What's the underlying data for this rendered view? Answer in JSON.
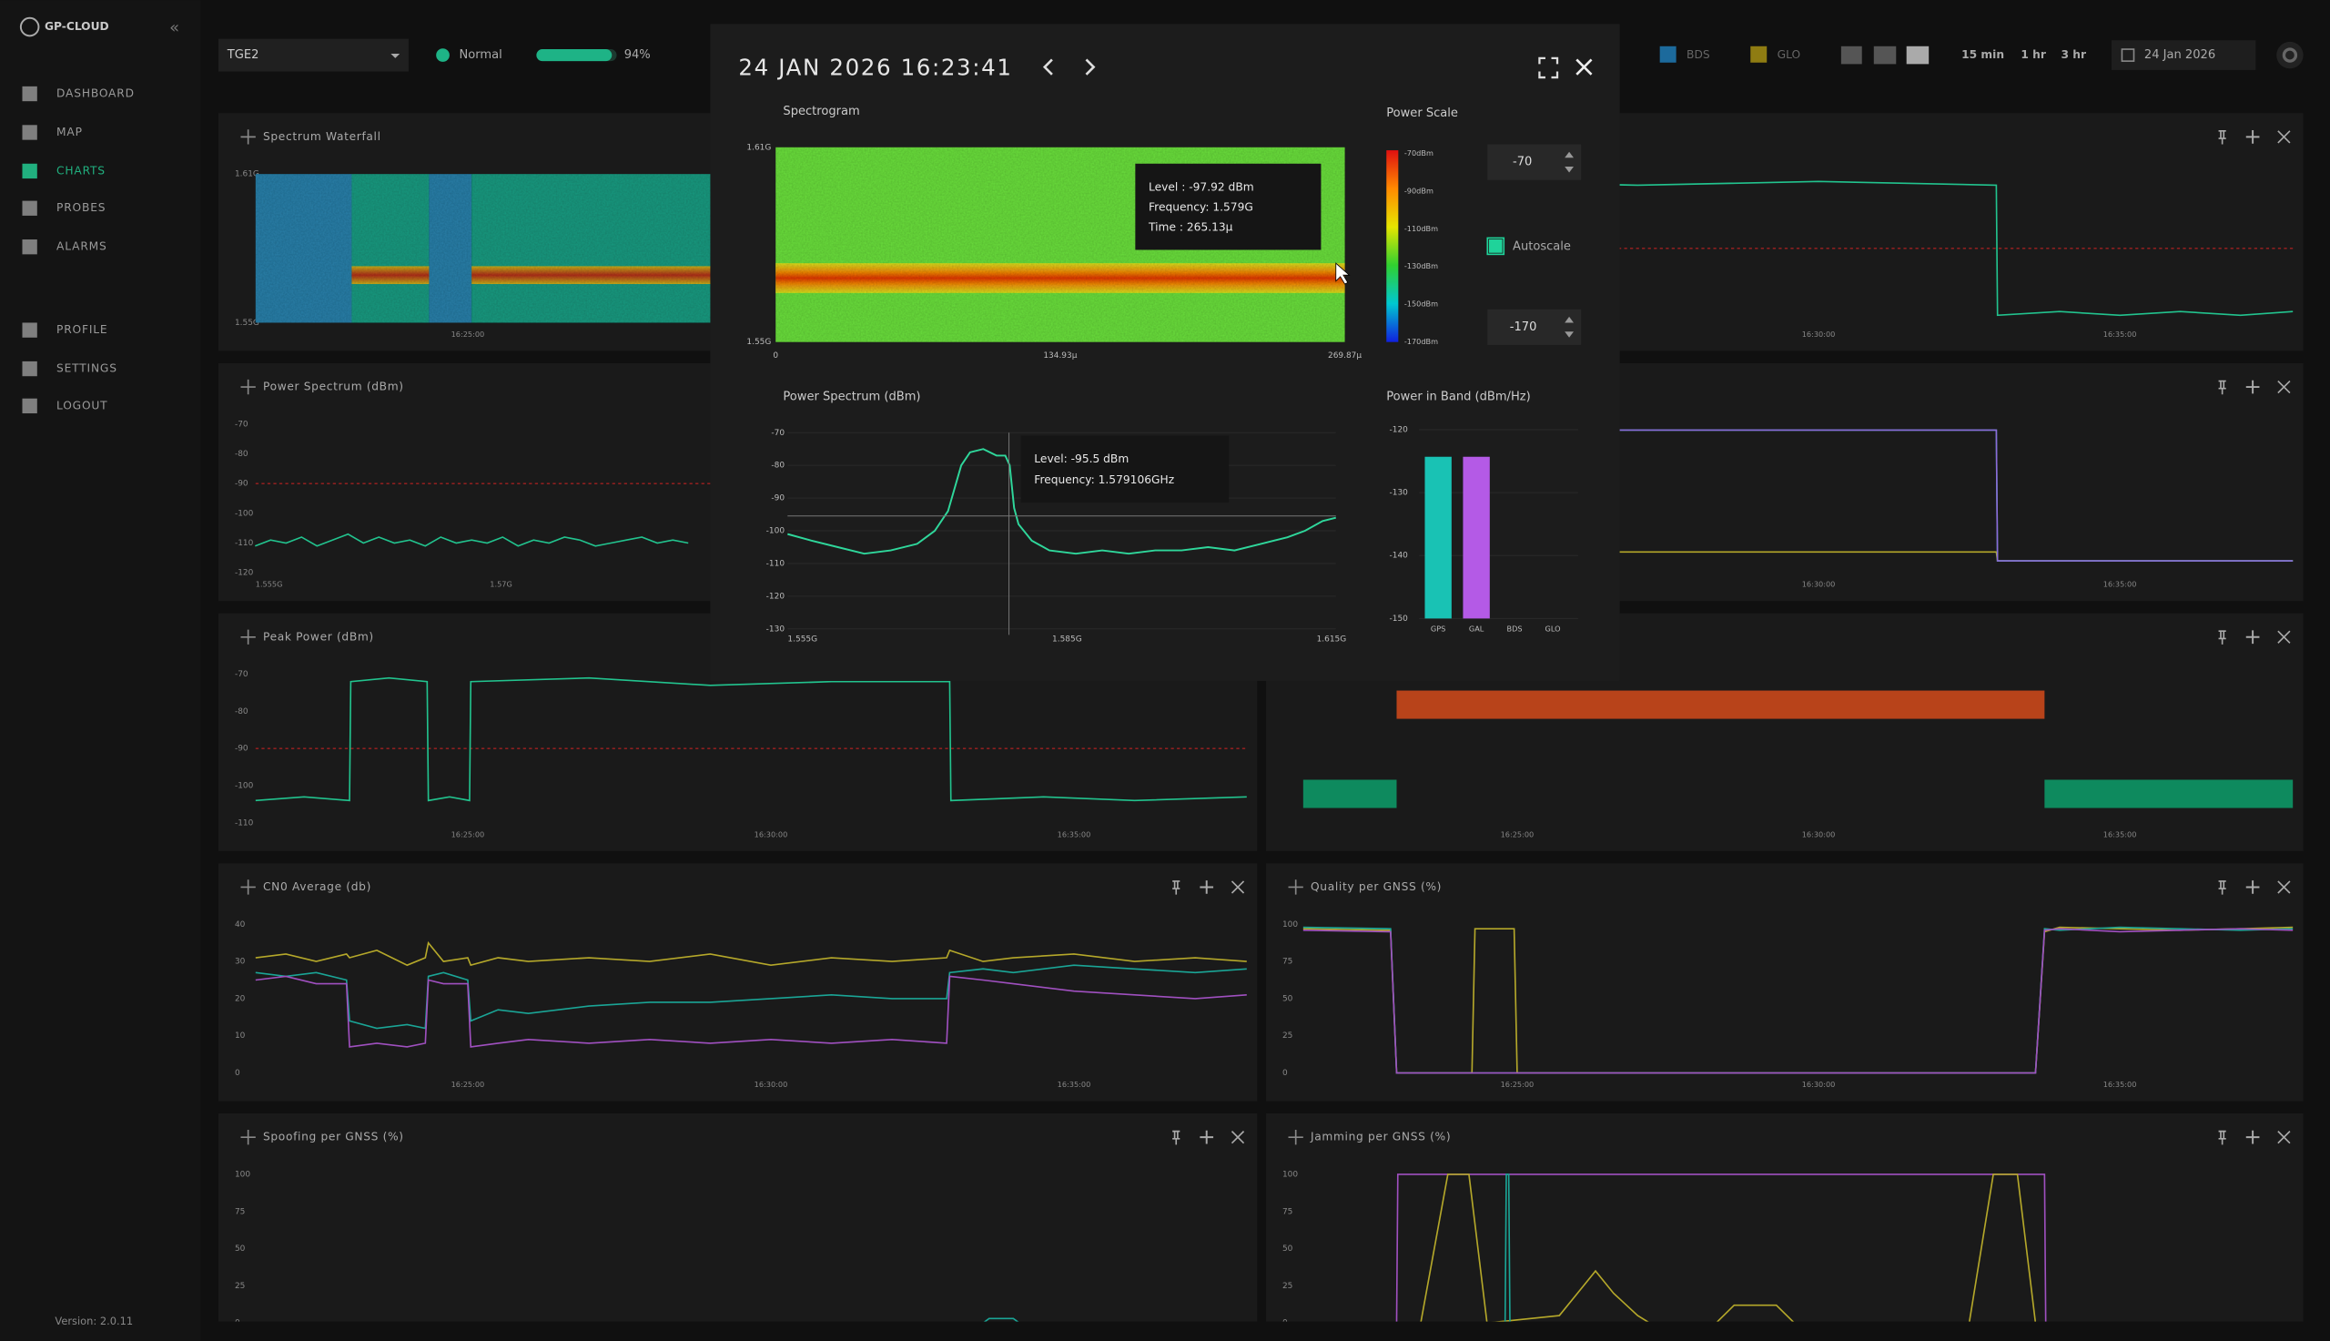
{
  "sidebar": {
    "logo": "GP-CLOUD",
    "nav": [
      "DASHBOARD",
      "MAP",
      "CHARTS",
      "PROBES",
      "ALARMS",
      "PROFILE",
      "SETTINGS",
      "LOGOUT"
    ],
    "version": "Version: 2.0.11"
  },
  "topbar": {
    "probe": "TGE2",
    "status": "Normal",
    "level": 94,
    "level_label": "94%",
    "legend": [
      {
        "name": "BDS",
        "color": "#1c6a9c"
      },
      {
        "name": "GLO",
        "color": "#8f7c12"
      }
    ],
    "ranges": [
      "15 min",
      "1 hr",
      "3 hr"
    ],
    "date": "24 Jan 2026"
  },
  "panels": [
    {
      "type": "waterfall",
      "title": "Spectrum Waterfall",
      "xlim": [
        21.5,
        37.85
      ],
      "xticks": [
        {
          "value": 25,
          "label": "16:25:00"
        }
      ],
      "ylim": [
        1.55,
        1.61
      ],
      "yticks": [
        {
          "value": 1.61,
          "label": "1.61G"
        },
        {
          "value": 1.55,
          "label": "1.55G"
        }
      ]
    },
    {
      "type": "line",
      "title": "Power Spectrum (dBm)",
      "xlim": [
        1.55413,
        1.6182
      ],
      "xticks": [
        {
          "value": 1.555,
          "label": "1.555G"
        },
        {
          "value": 1.57,
          "label": "1.57G"
        }
      ],
      "ylim": [
        -120,
        -70
      ],
      "yticks": [
        -70,
        -80,
        -90,
        -100,
        -110,
        -120
      ],
      "threshold": -90,
      "x": [
        1.5541,
        1.5551,
        1.5561,
        1.5571,
        1.5581,
        1.5591,
        1.5601,
        1.5611,
        1.5621,
        1.5631,
        1.5641,
        1.5651,
        1.5661,
        1.5671,
        1.5681,
        1.5691,
        1.5701,
        1.5711,
        1.5721,
        1.5731,
        1.5741,
        1.5751,
        1.5761,
        1.5771,
        1.5781,
        1.5791,
        1.5801,
        1.5811,
        1.5821
      ],
      "series": [
        {
          "color": "#22c38e",
          "values": [
            -111,
            -109,
            -110,
            -108,
            -111,
            -109,
            -107,
            -110,
            -108,
            -110,
            -109,
            -111,
            -108,
            -110,
            -109,
            -110,
            -108,
            -111,
            -109,
            -110,
            -108,
            -109,
            -111,
            -110,
            -109,
            -108,
            -110,
            -109,
            -110
          ]
        }
      ]
    },
    {
      "type": "line",
      "title": "Peak Power (dBm)",
      "xlim": [
        21.5,
        37.85
      ],
      "xticks": [
        {
          "value": 25,
          "label": "16:25:00"
        },
        {
          "value": 30,
          "label": "16:30:00"
        },
        {
          "value": 35,
          "label": "16:35:00"
        }
      ],
      "ylim": [
        -110,
        -70
      ],
      "yticks": [
        -70,
        -80,
        -90,
        -100,
        -110
      ],
      "threshold": -90,
      "x": [
        21.5,
        22.3,
        23.05,
        23.07,
        23.7,
        24.33,
        24.35,
        24.7,
        25.03,
        25.05,
        27,
        29,
        31,
        32.95,
        32.97,
        34.5,
        36,
        37.85
      ],
      "series": [
        {
          "color": "#22c38e",
          "values": [
            -104,
            -103,
            -104,
            -72,
            -71,
            -72,
            -104,
            -103,
            -104,
            -72,
            -71,
            -73,
            -72,
            -72,
            -104,
            -103,
            -104,
            -103
          ]
        }
      ]
    },
    {
      "type": "line",
      "title": "CN0 Average (db)",
      "xlim": [
        21.5,
        37.85
      ],
      "xticks": [
        {
          "value": 25,
          "label": "16:25:00"
        },
        {
          "value": 30,
          "label": "16:30:00"
        },
        {
          "value": 35,
          "label": "16:35:00"
        }
      ],
      "ylim": [
        0,
        40
      ],
      "yticks": [
        0,
        10,
        20,
        30,
        40
      ],
      "x": [
        21.5,
        22,
        22.5,
        23,
        23.05,
        23.5,
        24,
        24.3,
        24.35,
        24.6,
        25,
        25.05,
        25.5,
        26,
        27,
        28,
        29,
        30,
        31,
        32,
        32.9,
        32.95,
        33.5,
        34,
        35,
        36,
        37,
        37.85
      ],
      "series": [
        {
          "color": "#b5a82a",
          "values": [
            31,
            32,
            30,
            32,
            31,
            33,
            29,
            31,
            35,
            30,
            31,
            29,
            31,
            30,
            31,
            30,
            32,
            29,
            31,
            30,
            31,
            33,
            30,
            31,
            32,
            30,
            31,
            30
          ]
        },
        {
          "color": "#1aa596",
          "values": [
            27,
            26,
            27,
            25,
            14,
            12,
            13,
            12,
            26,
            27,
            25,
            14,
            17,
            16,
            18,
            19,
            19,
            20,
            21,
            20,
            20,
            27,
            28,
            27,
            29,
            28,
            27,
            28
          ]
        },
        {
          "color": "#a050c0",
          "values": [
            25,
            26,
            24,
            24,
            7,
            8,
            7,
            8,
            25,
            24,
            24,
            7,
            8,
            9,
            8,
            9,
            8,
            9,
            8,
            9,
            8,
            26,
            25,
            24,
            22,
            21,
            20,
            21
          ]
        }
      ]
    },
    {
      "type": "line",
      "title": "Spoofing per GNSS (%)",
      "xlim": [
        21.5,
        37.85
      ],
      "xticks": [],
      "ylim": [
        0,
        100
      ],
      "yticks": [
        0,
        25,
        50,
        75,
        100
      ],
      "x": [
        21.5,
        33.5,
        33.6,
        34.0,
        34.1,
        37.85
      ],
      "series": [
        {
          "color": "#1aa596",
          "values": [
            0,
            0,
            3,
            3,
            0,
            0
          ]
        }
      ]
    },
    {
      "type": "line",
      "xlim": [
        21.45,
        37.87
      ],
      "xticks": [
        {
          "value": 25,
          "label": "16:25:00"
        },
        {
          "value": 30,
          "label": "16:30:00"
        },
        {
          "value": 35,
          "label": "16:35:00"
        }
      ],
      "ylim": [
        -110,
        -70
      ],
      "yticks": [],
      "threshold": -90,
      "x": [
        21.45,
        24,
        27,
        30,
        32.95,
        32.97,
        34,
        35,
        36,
        37,
        37.87
      ],
      "series": [
        {
          "color": "#22c38e",
          "values": [
            -73,
            -72,
            -73,
            -72,
            -73,
            -108,
            -107,
            -108,
            -107,
            -108,
            -107
          ]
        }
      ]
    },
    {
      "type": "line",
      "xlim": [
        21.45,
        37.87
      ],
      "xticks": [
        {
          "value": 25,
          "label": "16:25:00"
        },
        {
          "value": 30,
          "label": "16:30:00"
        },
        {
          "value": 35,
          "label": "16:35:00"
        }
      ],
      "ylim": [
        -120,
        -70
      ],
      "yticks": [],
      "x": [
        21.45,
        25,
        30,
        32.95,
        32.97,
        37.87
      ],
      "series": [
        {
          "color": "#b5a82a",
          "values": [
            -113,
            -113,
            -113,
            -113,
            -116,
            -116
          ]
        },
        {
          "color": "#1aa596",
          "values": [
            -72,
            -72,
            -72,
            -72,
            -116,
            -116
          ]
        },
        {
          "color": "#8c6ad8",
          "values": [
            -72,
            -72,
            -72,
            -72,
            -116,
            -116
          ]
        }
      ]
    },
    {
      "type": "timeline",
      "xlim": [
        21.45,
        37.87
      ],
      "xticks": [
        {
          "value": 25,
          "label": "16:25:00"
        },
        {
          "value": 30,
          "label": "16:30:00"
        },
        {
          "value": 35,
          "label": "16:35:00"
        }
      ],
      "segments": [
        {
          "start": 23.0,
          "end": 33.75,
          "lane": 0,
          "color": "#b8431a"
        },
        {
          "start": 21.45,
          "end": 23.0,
          "lane": 1,
          "color": "#0e8a5e"
        },
        {
          "start": 33.75,
          "end": 37.87,
          "lane": 1,
          "color": "#0e8a5e"
        }
      ]
    },
    {
      "type": "line",
      "title": "Quality per GNSS (%)",
      "xlim": [
        21.45,
        37.87
      ],
      "xticks": [
        {
          "value": 25,
          "label": "16:25:00"
        },
        {
          "value": 30,
          "label": "16:30:00"
        },
        {
          "value": 35,
          "label": "16:35:00"
        }
      ],
      "ylim": [
        0,
        100
      ],
      "yticks": [
        0,
        25,
        50,
        75,
        100
      ],
      "x": [
        21.45,
        22.9,
        23.0,
        24.2,
        24.25,
        24.3,
        24.95,
        25.0,
        33.6,
        33.75,
        34,
        35,
        36,
        37,
        37.87
      ],
      "series": [
        {
          "color": "#b5a82a",
          "values": [
            97,
            96,
            0,
            0,
            0,
            97,
            97,
            0,
            0,
            95,
            98,
            97,
            96,
            97,
            98
          ]
        },
        {
          "color": "#1aa596",
          "values": [
            98,
            97,
            0,
            0,
            0,
            0,
            0,
            0,
            0,
            97,
            96,
            98,
            97,
            96,
            97
          ]
        },
        {
          "color": "#a050c0",
          "values": [
            96,
            95,
            0,
            0,
            0,
            0,
            0,
            0,
            0,
            96,
            97,
            95,
            96,
            97,
            96
          ]
        }
      ]
    },
    {
      "type": "line",
      "title": "Jamming per GNSS (%)",
      "xlim": [
        21.45,
        37.87
      ],
      "xticks": [],
      "ylim": [
        0,
        100
      ],
      "yticks": [
        0,
        25,
        50,
        75,
        100
      ],
      "series": [
        {
          "color": "#a050c0",
          "x": [
            21.45,
            23.0,
            23.02,
            33.75,
            33.77,
            37.87
          ],
          "values": [
            0,
            0,
            100,
            100,
            0,
            0
          ]
        },
        {
          "color": "#b5a82a",
          "x": [
            21.45,
            23.4,
            23.85,
            24.2,
            24.5,
            25.7,
            26.0,
            26.3,
            26.6,
            27.0,
            27.2,
            28.3,
            28.6,
            29.3,
            29.6,
            32.5,
            32.9,
            33.3,
            33.6,
            37.87
          ],
          "values": [
            0,
            0,
            100,
            100,
            0,
            5,
            20,
            35,
            20,
            5,
            0,
            0,
            12,
            12,
            0,
            0,
            100,
            100,
            0,
            0
          ]
        },
        {
          "color": "#1aa596",
          "x": [
            21.45,
            24.8,
            24.82,
            24.86,
            24.88,
            37.87
          ],
          "values": [
            0,
            0,
            100,
            100,
            0,
            0
          ]
        }
      ]
    }
  ],
  "modal": {
    "title": "24 JAN 2026 16:23:41",
    "spectrogram": {
      "title": "Spectrogram",
      "xlim": [
        0,
        269.87
      ],
      "xticks": [
        0,
        {
          "value": 134.93,
          "label": "134.93µ"
        },
        {
          "value": 269.87,
          "label": "269.87µ"
        }
      ],
      "ylim": [
        1.55,
        1.61
      ],
      "yticks": [
        {
          "value": 1.61,
          "label": "1.61G"
        },
        {
          "value": 1.55,
          "label": "1.55G"
        }
      ],
      "tooltip": [
        "Level : -97.92 dBm",
        "Frequency: 1.579G",
        "Time : 265.13µ"
      ]
    },
    "power_scale": {
      "title": "Power Scale",
      "labels": [
        "-70dBm",
        "-90dBm",
        "-110dBm",
        "-130dBm",
        "-150dBm",
        "-170dBm"
      ],
      "max": -70,
      "min": -170,
      "autoscale_label": "Autoscale",
      "autoscale": true
    },
    "power_spectrum": {
      "title": "Power Spectrum (dBm)",
      "xlim": [
        1.5533,
        1.6155
      ],
      "xticks": [
        {
          "value": 1.555,
          "label": "1.555G"
        },
        {
          "value": 1.585,
          "label": "1.585G"
        },
        {
          "value": 1.615,
          "label": "1.615G"
        }
      ],
      "ylim": [
        -130,
        -70
      ],
      "yticks": [
        -70,
        -80,
        -90,
        -100,
        -110,
        -120,
        -130
      ],
      "color": "#2fd79b",
      "x": [
        1.5533,
        1.556,
        1.559,
        1.562,
        1.565,
        1.568,
        1.57,
        1.5715,
        1.573,
        1.574,
        1.5755,
        1.577,
        1.578,
        1.5785,
        1.579,
        1.5795,
        1.581,
        1.583,
        1.586,
        1.589,
        1.592,
        1.595,
        1.598,
        1.601,
        1.604,
        1.607,
        1.61,
        1.612,
        1.614,
        1.6155
      ],
      "values": [
        -101,
        -103,
        -105,
        -107,
        -106,
        -104,
        -100,
        -94,
        -80,
        -76,
        -75,
        -77,
        -77,
        -80,
        -93,
        -98,
        -103,
        -106,
        -107,
        -106,
        -107,
        -106,
        -106,
        -105,
        -106,
        -104,
        -102,
        -100,
        -97,
        -96
      ],
      "tooltip": [
        "Level: -95.5 dBm",
        "Frequency: 1.579106GHz"
      ]
    },
    "power_in_band": {
      "title": "Power in Band (dBm/Hz)",
      "categories": [
        "GPS",
        "GAL",
        "BDS",
        "GLO"
      ],
      "values": [
        -124.3,
        -124.3,
        null,
        null
      ],
      "colors": [
        "#19c2b4",
        "#b45ae6",
        "#1c6a9c",
        "#8f7c12"
      ],
      "ylim": [
        -150,
        -120
      ],
      "yticks": [
        -120,
        -130,
        -140,
        -150
      ]
    }
  }
}
